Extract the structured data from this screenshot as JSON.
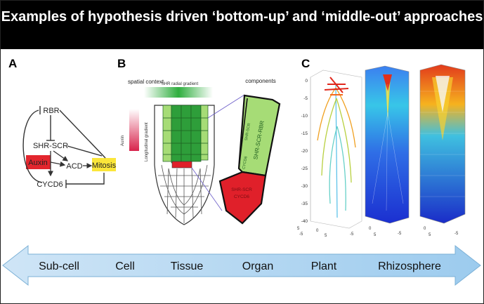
{
  "header": {
    "title": "Examples of hypothesis driven ‘bottom-up’ and ‘middle-out’ approaches"
  },
  "panels": {
    "a": {
      "label": "A",
      "nodes": {
        "rbr": "RBR",
        "shr_scr": "SHR-SCR",
        "auxin": "Auxin",
        "acd": "ACD",
        "mitosis": "Mitosis",
        "cycd6": "CYCD6"
      },
      "colors": {
        "auxin_box": "#e3262e",
        "mitosis_box": "#fbe63a"
      }
    },
    "b": {
      "label": "B",
      "spatial_context": "spatial context",
      "radial_gradient": "SHR radial gradient",
      "auxin_label": "Auxin",
      "longitudinal_gradient": "Longitudinal gradient",
      "components": "components",
      "comp_upper_small": "SHR-SCR",
      "comp_upper_main": "SHR-SCR-RBR",
      "comp_upper_sub": "CYCD6",
      "comp_lower_main": "SHR-SCR",
      "comp_lower_sub": "CYCD6",
      "colors": {
        "green": "#2e9e3a",
        "light_green": "#a6dc76",
        "red": "#e0202a"
      }
    },
    "c": {
      "label": "C",
      "y_ticks": [
        "0",
        "-5",
        "-10",
        "-15",
        "-20",
        "-25",
        "-30",
        "-35",
        "-40"
      ],
      "x_ticks_left": [
        "5",
        "-5"
      ],
      "x_ticks_plot": [
        "0",
        "5",
        "-5"
      ]
    }
  },
  "scale_arrow": {
    "labels": [
      "Sub-cell",
      "Cell",
      "Tissue",
      "Organ",
      "Plant",
      "Rhizosphere"
    ],
    "color": "#aed4f0"
  }
}
